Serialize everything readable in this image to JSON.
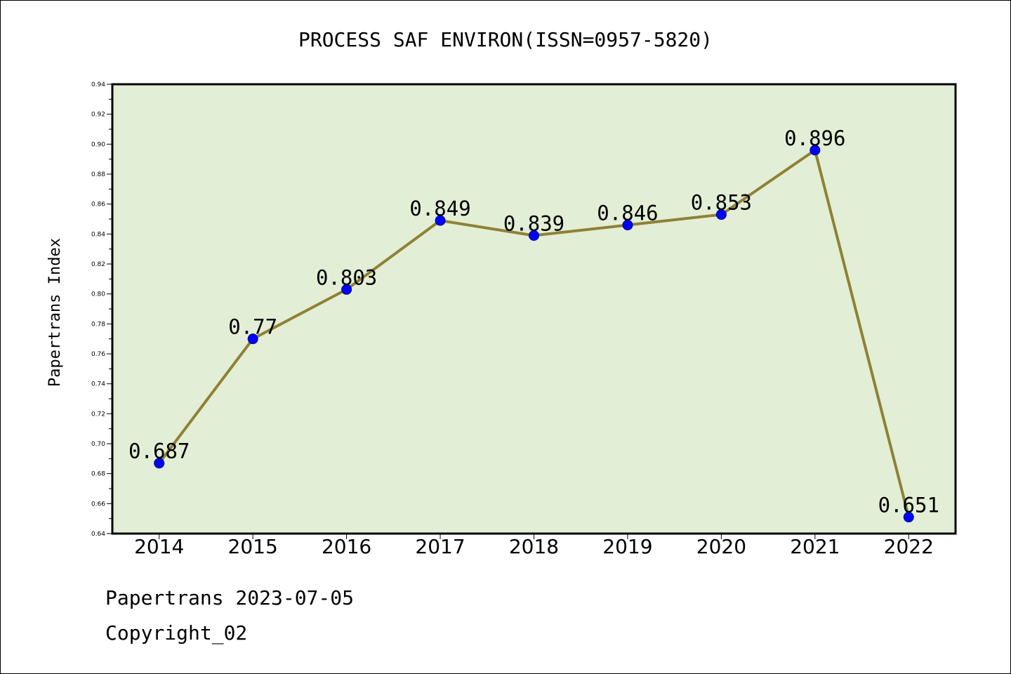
{
  "chart_data": {
    "type": "line",
    "title": "PROCESS SAF ENVIRON(ISSN=0957-5820)",
    "ylabel": "Papertrans Index",
    "xlabel": "",
    "categories": [
      "2014",
      "2015",
      "2016",
      "2017",
      "2018",
      "2019",
      "2020",
      "2021",
      "2022"
    ],
    "values": [
      0.687,
      0.77,
      0.803,
      0.849,
      0.839,
      0.846,
      0.853,
      0.896,
      0.651
    ],
    "data_labels": [
      "0.687",
      "0.77",
      "0.803",
      "0.849",
      "0.839",
      "0.846",
      "0.853",
      "0.896",
      "0.651"
    ],
    "ylim": [
      0.64,
      0.94
    ],
    "yticks": [
      "0.64",
      "0.66",
      "0.68",
      "0.70",
      "0.72",
      "0.74",
      "0.76",
      "0.78",
      "0.80",
      "0.82",
      "0.84",
      "0.86",
      "0.88",
      "0.90",
      "0.92",
      "0.94"
    ],
    "grid": false,
    "legend": "none",
    "colors": {
      "plot_background": "#e2efd6",
      "line": "#8f8135",
      "marker": "#0000ff",
      "axes": "#000000"
    }
  },
  "footer": {
    "line1": "Papertrans 2023-07-05",
    "line2": "Copyright_02"
  }
}
